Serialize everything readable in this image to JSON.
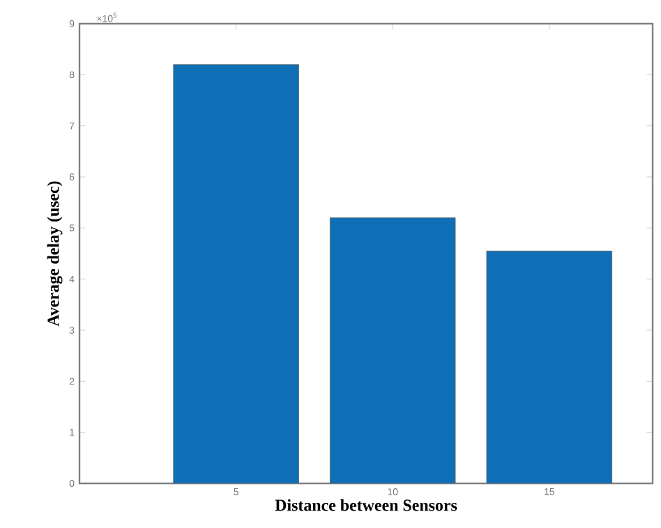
{
  "chart_data": {
    "type": "bar",
    "x": [
      5,
      10,
      15
    ],
    "values": [
      8.2,
      5.2,
      4.55
    ],
    "color": "#0f6fb6",
    "xlabel": "Distance between Sensors",
    "ylabel": "Average delay (usec)",
    "xlim": [
      0,
      18.3
    ],
    "xticks": [
      5,
      10,
      15
    ],
    "ylim": [
      0,
      9
    ],
    "yticks": [
      0,
      1,
      2,
      3,
      4,
      5,
      6,
      7,
      8,
      9
    ],
    "annotations": [
      "×10$^{5}$"
    ]
  }
}
